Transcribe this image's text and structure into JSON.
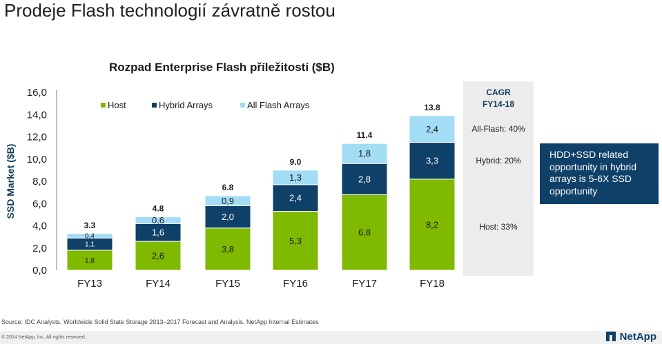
{
  "page": {
    "title": "Prodeje Flash technologií závratně rostou",
    "subtitle": "Rozpad Enterprise Flash příležitostí ($B)",
    "source": "Source: IDC Analysts, Worldwide Solid State Storage 2013–2017 Forecast and Analysis, NetApp Internal Estimates",
    "copyright": "© 2014 NetApp, Inc. All rights reserved.",
    "logo_text": "NetApp"
  },
  "cagr": {
    "title_line1": "CAGR",
    "title_line2": "FY14-18",
    "rows": [
      "All-Flash: 40%",
      "Hybrid: 20%",
      "Host: 33%"
    ]
  },
  "callout": {
    "text": "HDD+SSD related opportunity in hybrid arrays is 5-6X SSD opportunity"
  },
  "colors": {
    "host": "#7fba00",
    "hybrid": "#0f4068",
    "all_flash": "#a3dcf5",
    "callout_bg": "#0f4068"
  },
  "chart_data": {
    "type": "bar",
    "stacked": true,
    "ylabel": "SSD Market ($B)",
    "ylim": [
      0,
      16
    ],
    "y_ticks": [
      "0,0",
      "2,0",
      "4,0",
      "6,0",
      "8,0",
      "10,0",
      "12,0",
      "14,0",
      "16,0"
    ],
    "categories": [
      "FY13",
      "FY14",
      "FY15",
      "FY16",
      "FY17",
      "FY18"
    ],
    "totals": [
      "3.3",
      "4.8",
      "6.8",
      "9.0",
      "11.4",
      "13.8"
    ],
    "legend_position": "top-left",
    "series": [
      {
        "name": "Host",
        "color": "#7fba00",
        "values": [
          1.8,
          2.6,
          3.8,
          5.3,
          6.8,
          8.2
        ],
        "labels": [
          "1,8",
          "2,6",
          "3,8",
          "5,3",
          "6,8",
          "8,2"
        ]
      },
      {
        "name": "Hybrid Arrays",
        "color": "#0f4068",
        "values": [
          1.1,
          1.6,
          2.0,
          2.4,
          2.8,
          3.3
        ],
        "labels": [
          "1,1",
          "1,6",
          "2,0",
          "2,4",
          "2,8",
          "3,3"
        ]
      },
      {
        "name": "All Flash Arrays",
        "color": "#a3dcf5",
        "values": [
          0.4,
          0.6,
          0.9,
          1.3,
          1.8,
          2.4
        ],
        "labels": [
          "0,4",
          "0,6",
          "0,9",
          "1,3",
          "1,8",
          "2,4"
        ]
      }
    ]
  }
}
